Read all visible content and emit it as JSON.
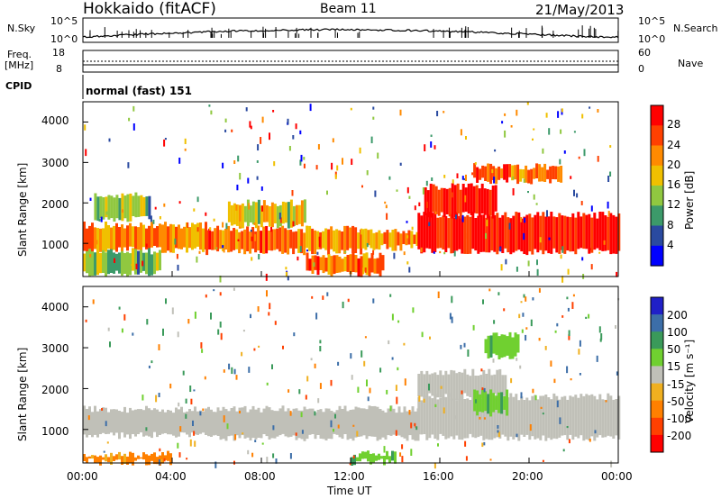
{
  "header": {
    "radar": "Hokkaido (fitACF)",
    "beam": "Beam 11",
    "date": "21/May/2013"
  },
  "panels": {
    "nsky_label": "N.Sky",
    "nsky_ticks": [
      "10^5",
      "10^0"
    ],
    "nsearch_label": "N.Search",
    "nsearch_ticks": [
      "10^5",
      "10^0"
    ],
    "freq_label_1": "Freq.",
    "freq_label_2": "[MHz]",
    "freq_ticks": [
      "18",
      "8"
    ],
    "nave_label": "Nave",
    "nave_ticks": [
      "60",
      "0"
    ],
    "cpid_label": "CPID",
    "cpid_value": "normal (fast) 151"
  },
  "axes": {
    "ylabel": "Slant Range [km]",
    "yticks": [
      "4000",
      "3000",
      "2000",
      "1000"
    ],
    "xticks": [
      "00:00",
      "04:00",
      "08:00",
      "12:00",
      "16:00",
      "20:00",
      "00:00"
    ],
    "xlabel": "Time UT"
  },
  "colorbars": {
    "power": {
      "label": "Power [dB]",
      "ticks": [
        "28",
        "24",
        "20",
        "16",
        "12",
        "8",
        "4"
      ],
      "colors": [
        "#ff0000",
        "#ff4000",
        "#ff8a00",
        "#f0c000",
        "#90c840",
        "#3c9a6a",
        "#2a4aa0",
        "#0000ff"
      ]
    },
    "velocity": {
      "label": "Velocity [m s⁻¹]",
      "ticks": [
        "200",
        "100",
        "50",
        "15",
        "-15",
        "-50",
        "-100",
        "-200"
      ],
      "colors": [
        "#2020c8",
        "#3c6ea8",
        "#3a9a5a",
        "#70d030",
        "#c0c0b8",
        "#f0b020",
        "#ff8000",
        "#ff4000",
        "#ff0000"
      ]
    }
  },
  "chart_data": [
    {
      "type": "heatmap",
      "title": "Power",
      "xlabel": "Time UT",
      "ylabel": "Slant Range [km]",
      "xlim": [
        0,
        24
      ],
      "ylim": [
        180,
        4500
      ],
      "zlabel": "Power [dB]",
      "zlim": [
        0,
        30
      ],
      "regions": [
        {
          "t0": 0,
          "t1": 5.5,
          "r0": 850,
          "r1": 1450,
          "value": 20
        },
        {
          "t0": 5.5,
          "t1": 12.5,
          "r0": 800,
          "r1": 1350,
          "value": 22
        },
        {
          "t0": 12.5,
          "t1": 15.0,
          "r0": 900,
          "r1": 1300,
          "value": 20
        },
        {
          "t0": 15.0,
          "t1": 24,
          "r0": 800,
          "r1": 1700,
          "value": 28
        },
        {
          "t0": 15.3,
          "t1": 18.5,
          "r0": 1700,
          "r1": 2400,
          "value": 28
        },
        {
          "t0": 17.5,
          "t1": 21.5,
          "r0": 2550,
          "r1": 2900,
          "value": 22
        },
        {
          "t0": 10.0,
          "t1": 13.5,
          "r0": 250,
          "r1": 700,
          "value": 22
        },
        {
          "t0": 6.5,
          "t1": 10.0,
          "r0": 1450,
          "r1": 2000,
          "value": 16
        },
        {
          "t0": 0.5,
          "t1": 3.0,
          "r0": 1600,
          "r1": 2200,
          "value": 12
        },
        {
          "t0": 0.0,
          "t1": 3.5,
          "r0": 250,
          "r1": 800,
          "value": 12
        }
      ]
    },
    {
      "type": "heatmap",
      "title": "Velocity",
      "xlabel": "Time UT",
      "ylabel": "Slant Range [km]",
      "xlim": [
        0,
        24
      ],
      "ylim": [
        180,
        4500
      ],
      "zlabel": "Velocity [m s⁻¹]",
      "zlim": [
        -200,
        200
      ],
      "regions": [
        {
          "t0": 0,
          "t1": 6.0,
          "r0": 850,
          "r1": 1500,
          "value": 0
        },
        {
          "t0": 6.0,
          "t1": 15.0,
          "r0": 800,
          "r1": 1500,
          "value": 0
        },
        {
          "t0": 15.0,
          "t1": 24,
          "r0": 800,
          "r1": 1800,
          "value": 0
        },
        {
          "t0": 15.0,
          "t1": 19.0,
          "r0": 1800,
          "r1": 2400,
          "value": 0
        },
        {
          "t0": 18.0,
          "t1": 19.5,
          "r0": 2800,
          "r1": 3300,
          "value": 40
        },
        {
          "t0": 17.5,
          "t1": 19.0,
          "r0": 1400,
          "r1": 1900,
          "value": 40
        },
        {
          "t0": 0.0,
          "t1": 4.0,
          "r0": 200,
          "r1": 400,
          "value": -60
        },
        {
          "t0": 12.0,
          "t1": 14.0,
          "r0": 200,
          "r1": 400,
          "value": 40
        }
      ]
    }
  ]
}
